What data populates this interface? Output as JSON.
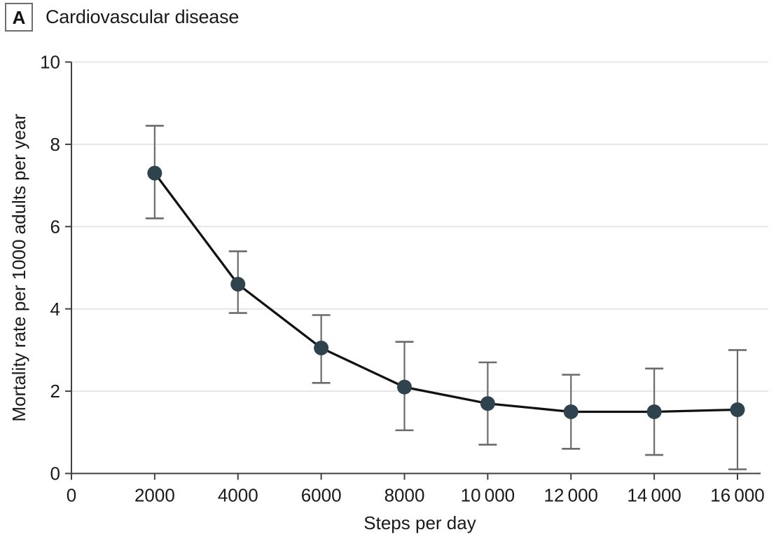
{
  "panel": {
    "label": "A",
    "title": "Cardiovascular disease"
  },
  "chart_data": {
    "type": "line",
    "title": "Cardiovascular disease",
    "xlabel": "Steps per day",
    "ylabel": "Mortality rate per 1000 adults per year",
    "x": [
      2000,
      4000,
      6000,
      8000,
      10000,
      12000,
      14000,
      16000
    ],
    "series": [
      {
        "name": "Cardiovascular disease mortality rate",
        "values": [
          7.3,
          4.6,
          3.05,
          2.1,
          1.7,
          1.5,
          1.5,
          1.55
        ],
        "ci_low": [
          6.2,
          3.9,
          2.2,
          1.05,
          0.7,
          0.6,
          0.45,
          0.1
        ],
        "ci_high": [
          8.45,
          5.4,
          3.85,
          3.2,
          2.7,
          2.4,
          2.55,
          3.0
        ]
      }
    ],
    "xlim": [
      0,
      16740
    ],
    "ylim": [
      0,
      10
    ],
    "x_ticks": [
      0,
      2000,
      4000,
      6000,
      8000,
      10000,
      12000,
      14000,
      16000
    ],
    "x_tick_labels": [
      "0",
      "2000",
      "4000",
      "6000",
      "8000",
      "10 000",
      "12 000",
      "14 000",
      "16 000"
    ],
    "y_ticks": [
      0,
      2,
      4,
      6,
      8,
      10
    ],
    "y_tick_labels": [
      "0",
      "2",
      "4",
      "6",
      "8",
      "10"
    ],
    "grid": "horizontal",
    "legend": "none",
    "marker": "circle",
    "error_bars": true,
    "colors": {
      "marker": "#2e434e",
      "line": "#111111",
      "whisker": "#6b6b6b",
      "grid": "#e5e5e5",
      "axis": "#404040",
      "text": "#1a1a1a"
    }
  }
}
